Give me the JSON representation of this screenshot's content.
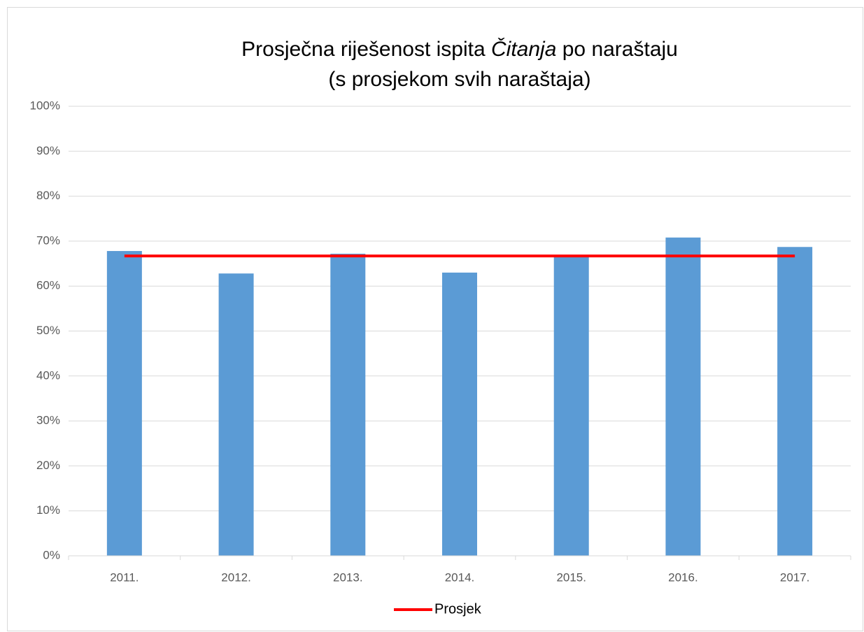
{
  "chart_data": {
    "type": "bar",
    "title": [
      "Prosječna riješenost ispita",
      "Čitanja",
      "po naraštaju"
    ],
    "subtitle": "(s prosjekom svih naraštaja)",
    "categories": [
      "2011.",
      "2012.",
      "2013.",
      "2014.",
      "2015.",
      "2016.",
      "2017."
    ],
    "series": [
      {
        "type": "bar",
        "color": "#5b9bd5",
        "values": [
          67.8,
          62.8,
          67.2,
          63.0,
          66.6,
          70.8,
          68.7
        ]
      },
      {
        "type": "line",
        "name": "Prosjek",
        "color": "#ff0000",
        "values": [
          66.7,
          66.7,
          66.7,
          66.7,
          66.7,
          66.7,
          66.7
        ]
      }
    ],
    "ylim": [
      0,
      100
    ],
    "yticks": [
      {
        "value": 0,
        "label": "0%"
      },
      {
        "value": 10,
        "label": "10%"
      },
      {
        "value": 20,
        "label": "20%"
      },
      {
        "value": 30,
        "label": "30%"
      },
      {
        "value": 40,
        "label": "40%"
      },
      {
        "value": 50,
        "label": "50%"
      },
      {
        "value": 60,
        "label": "60%"
      },
      {
        "value": 70,
        "label": "70%"
      },
      {
        "value": 80,
        "label": "80%"
      },
      {
        "value": 90,
        "label": "90%"
      },
      {
        "value": 100,
        "label": "100%"
      }
    ],
    "grid": true,
    "legend": "bottom"
  }
}
